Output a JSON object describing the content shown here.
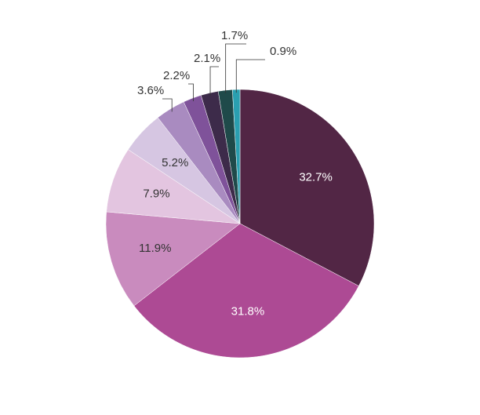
{
  "chart_data": {
    "type": "pie",
    "categories": [
      null,
      null,
      null,
      null,
      null,
      null,
      null,
      null,
      null,
      null
    ],
    "values": [
      32.7,
      31.8,
      11.9,
      7.9,
      5.2,
      3.6,
      2.2,
      2.1,
      1.7,
      0.9
    ],
    "value_labels": [
      "32.7%",
      "31.8%",
      "11.9%",
      "7.9%",
      "5.2%",
      "3.6%",
      "2.2%",
      "2.1%",
      "1.7%",
      "0.9%"
    ],
    "colors": [
      "#522645",
      "#ad4a94",
      "#c98bbe",
      "#e3c5e0",
      "#d6c6e2",
      "#a98bc0",
      "#7f529a",
      "#3d2b4a",
      "#1f4a4a",
      "#2a9fb0"
    ]
  }
}
